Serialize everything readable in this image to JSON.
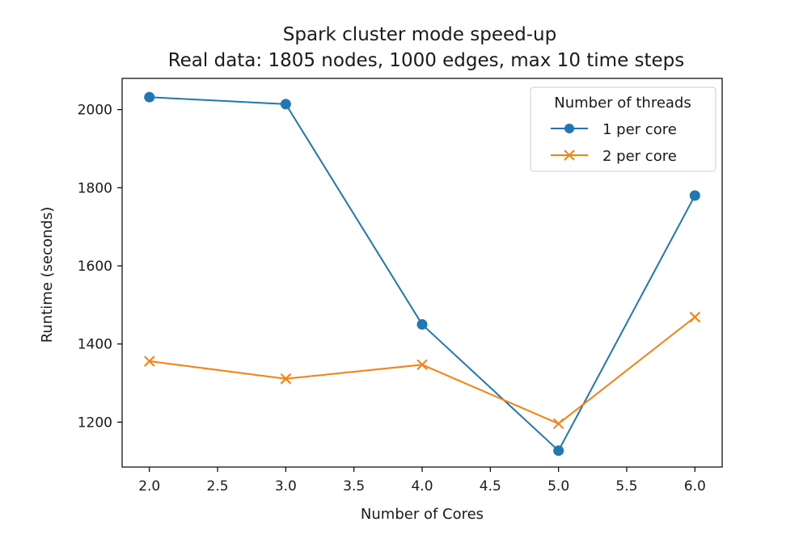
{
  "chart_data": {
    "type": "line",
    "title": "Spark cluster mode speed-up",
    "subtitle": "Real data: 1805 nodes, 1000 edges, max 10 time steps",
    "xlabel": "Number of Cores",
    "ylabel": "Runtime (seconds)",
    "xlim": [
      1.8,
      6.2
    ],
    "ylim": [
      1085,
      2080
    ],
    "xticks": [
      2.0,
      2.5,
      3.0,
      3.5,
      4.0,
      4.5,
      5.0,
      5.5,
      6.0
    ],
    "xtick_labels": [
      "2.0",
      "2.5",
      "3.0",
      "3.5",
      "4.0",
      "4.5",
      "5.0",
      "5.5",
      "6.0"
    ],
    "yticks": [
      1200,
      1400,
      1600,
      1800,
      2000
    ],
    "ytick_labels": [
      "1200",
      "1400",
      "1600",
      "1800",
      "2000"
    ],
    "grid": false,
    "legend": {
      "title": "Number of threads",
      "placement": "top-right"
    },
    "series": [
      {
        "name": "1 per core",
        "color": "#1f77b4",
        "marker": "circle",
        "x": [
          2.0,
          3.0,
          4.0,
          5.0,
          6.0
        ],
        "y": [
          2032,
          2014,
          1450,
          1127,
          1780
        ]
      },
      {
        "name": "2 per core",
        "color": "#ff7f0e",
        "marker": "x",
        "x": [
          2.0,
          3.0,
          4.0,
          5.0,
          6.0
        ],
        "y": [
          1356,
          1311,
          1347,
          1196,
          1469
        ]
      }
    ]
  }
}
